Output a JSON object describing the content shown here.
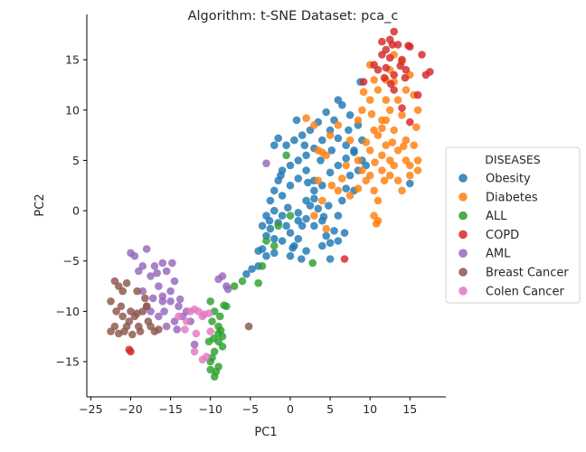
{
  "chart_data": {
    "type": "scatter",
    "title": "Algorithm: t-SNE  Dataset: pca_c",
    "xlabel": "PC1",
    "ylabel": "PC2",
    "xlim": [
      -25.5,
      19.5
    ],
    "ylim": [
      -18.5,
      19.5
    ],
    "xticks": [
      -25,
      -20,
      -15,
      -10,
      -5,
      0,
      5,
      10,
      15
    ],
    "yticks": [
      -15,
      -10,
      -5,
      0,
      5,
      10,
      15
    ],
    "grid": false,
    "legend": {
      "title": "DISEASES",
      "placement": "right"
    },
    "series": [
      {
        "name": "Obesity",
        "color": "#1f77b4",
        "points": [
          [
            -5.5,
            -6.3
          ],
          [
            -4.8,
            -5.8
          ],
          [
            -4,
            -5.5
          ],
          [
            -3.5,
            -3.8
          ],
          [
            -3,
            -2.5
          ],
          [
            -2.5,
            -1.8
          ],
          [
            -2,
            -2.8
          ],
          [
            -1.5,
            -1.2
          ],
          [
            -1,
            -0.5
          ],
          [
            -0.5,
            -1.5
          ],
          [
            0,
            -2.2
          ],
          [
            0.5,
            -3.5
          ],
          [
            1,
            -2.8
          ],
          [
            1.5,
            -1.5
          ],
          [
            2,
            -0.8
          ],
          [
            2.5,
            0.5
          ],
          [
            3,
            1.2
          ],
          [
            3.5,
            0.2
          ],
          [
            4,
            -1
          ],
          [
            4.5,
            -2.5
          ],
          [
            5,
            -3.2
          ],
          [
            5.5,
            -2
          ],
          [
            6,
            -0.5
          ],
          [
            6.5,
            1
          ],
          [
            7,
            2.2
          ],
          [
            7.5,
            3.5
          ],
          [
            8,
            2
          ],
          [
            8.5,
            4
          ],
          [
            9,
            5
          ],
          [
            8,
            5.8
          ],
          [
            7,
            6.5
          ],
          [
            6,
            7.2
          ],
          [
            5,
            8
          ],
          [
            4,
            7
          ],
          [
            3,
            6.2
          ],
          [
            2,
            5.5
          ],
          [
            1,
            5
          ],
          [
            0,
            4.5
          ],
          [
            -1,
            4
          ],
          [
            -1.5,
            3
          ],
          [
            -2,
            2
          ],
          [
            -2.5,
            1
          ],
          [
            -3,
            -0.5
          ],
          [
            -3.5,
            -1.5
          ],
          [
            -2,
            0
          ],
          [
            -1,
            1.5
          ],
          [
            0,
            2.5
          ],
          [
            1,
            3.2
          ],
          [
            2,
            4
          ],
          [
            3,
            3
          ],
          [
            4,
            2.5
          ],
          [
            5,
            3.8
          ],
          [
            6,
            4.5
          ],
          [
            7,
            5.2
          ],
          [
            8,
            6
          ],
          [
            9,
            7
          ],
          [
            8.5,
            8.5
          ],
          [
            7.5,
            9.5
          ],
          [
            6.5,
            10.5
          ],
          [
            5.5,
            9
          ],
          [
            4.5,
            9.8
          ],
          [
            3.5,
            8.8
          ],
          [
            2.5,
            8
          ],
          [
            1.5,
            7.5
          ],
          [
            0.5,
            7
          ],
          [
            -0.5,
            6.5
          ],
          [
            -1.5,
            7.2
          ],
          [
            -2,
            6.5
          ],
          [
            0,
            -4.5
          ],
          [
            -1,
            -3
          ],
          [
            1,
            -1
          ],
          [
            2,
            1
          ],
          [
            3,
            -1.5
          ],
          [
            4,
            -3.5
          ],
          [
            5,
            -4.8
          ],
          [
            6,
            -3
          ],
          [
            2,
            -4
          ],
          [
            -3,
            -4.5
          ],
          [
            -4,
            -4
          ],
          [
            -2,
            -4.2
          ],
          [
            8.8,
            12.8
          ],
          [
            9.5,
            4.5
          ],
          [
            15,
            2.7
          ],
          [
            6,
            11
          ],
          [
            3,
            2
          ],
          [
            1,
            -0.2
          ],
          [
            -0.3,
            0.3
          ],
          [
            4.8,
            0.5
          ],
          [
            7.3,
            8
          ],
          [
            5.2,
            6
          ],
          [
            2.2,
            2.8
          ],
          [
            -1.2,
            3.5
          ],
          [
            0.8,
            9
          ],
          [
            1.8,
            6.5
          ],
          [
            3.8,
            5
          ],
          [
            -2.6,
            -1
          ],
          [
            0.3,
            -3.7
          ],
          [
            6.8,
            -2.2
          ],
          [
            4.2,
            -0.6
          ],
          [
            1.4,
            -4.8
          ]
        ]
      },
      {
        "name": "Diabetes",
        "color": "#ff7f0e",
        "points": [
          [
            2,
            9.2
          ],
          [
            3,
            8.5
          ],
          [
            3.5,
            6
          ],
          [
            4.5,
            5.5
          ],
          [
            3.5,
            3
          ],
          [
            4,
            1
          ],
          [
            3,
            -0.5
          ],
          [
            4.5,
            -1.8
          ],
          [
            6,
            2
          ],
          [
            7,
            4.5
          ],
          [
            7.5,
            7
          ],
          [
            8.5,
            9
          ],
          [
            9,
            10
          ],
          [
            10,
            11
          ],
          [
            10.5,
            13
          ],
          [
            10,
            14.5
          ],
          [
            11,
            12
          ],
          [
            12,
            13
          ],
          [
            12.5,
            14
          ],
          [
            13,
            15.5
          ],
          [
            14,
            14.8
          ],
          [
            15,
            13.5
          ],
          [
            14.5,
            12
          ],
          [
            13.5,
            11
          ],
          [
            12.5,
            10
          ],
          [
            11.5,
            9
          ],
          [
            10.5,
            8
          ],
          [
            9.5,
            6.8
          ],
          [
            8.5,
            5
          ],
          [
            9.5,
            3
          ],
          [
            10.5,
            2
          ],
          [
            11.5,
            4
          ],
          [
            12.5,
            5
          ],
          [
            13.5,
            6
          ],
          [
            14.5,
            7
          ],
          [
            15.5,
            6.5
          ],
          [
            16,
            5
          ],
          [
            15,
            3.5
          ],
          [
            14,
            2
          ],
          [
            13,
            4.5
          ],
          [
            12,
            6.5
          ],
          [
            11,
            7.5
          ],
          [
            10,
            6
          ],
          [
            11,
            1
          ],
          [
            10.5,
            -0.5
          ],
          [
            11,
            -1
          ],
          [
            10.8,
            -1.3
          ],
          [
            12,
            9
          ],
          [
            13,
            8
          ],
          [
            14,
            9.5
          ],
          [
            14.5,
            5
          ],
          [
            15,
            4.5
          ],
          [
            16,
            4
          ],
          [
            13.5,
            3
          ],
          [
            12.5,
            3.5
          ],
          [
            11.5,
            5.5
          ],
          [
            10,
            3.5
          ],
          [
            9,
            4
          ],
          [
            8.5,
            2.2
          ],
          [
            7.5,
            1.5
          ],
          [
            6.5,
            3.2
          ],
          [
            5.2,
            2.5
          ],
          [
            4,
            5.8
          ],
          [
            5,
            7.5
          ],
          [
            6,
            8.5
          ],
          [
            16,
            10
          ],
          [
            15.5,
            11.5
          ],
          [
            13,
            12.8
          ],
          [
            12,
            11
          ],
          [
            11.5,
            8.2
          ],
          [
            10.2,
            9.6
          ],
          [
            9.2,
            11.8
          ],
          [
            14.2,
            6.4
          ],
          [
            12.8,
            6.8
          ],
          [
            11.8,
            3
          ],
          [
            15.8,
            8.3
          ],
          [
            10.6,
            4.8
          ]
        ]
      },
      {
        "name": "ALL",
        "color": "#2ca02c",
        "points": [
          [
            -10,
            -9
          ],
          [
            -9.5,
            -10
          ],
          [
            -9,
            -11.5
          ],
          [
            -8.5,
            -12.5
          ],
          [
            -9,
            -13
          ],
          [
            -9.5,
            -14
          ],
          [
            -10,
            -15
          ],
          [
            -9,
            -15.5
          ],
          [
            -9.5,
            -16.5
          ],
          [
            -10,
            -15.8
          ],
          [
            -8.5,
            -13.5
          ],
          [
            -9,
            -12.2
          ],
          [
            -8.8,
            -10.5
          ],
          [
            -9.8,
            -11
          ],
          [
            -10.2,
            -13
          ],
          [
            -8.3,
            -9.4
          ],
          [
            -9.3,
            -16
          ],
          [
            -9.8,
            -14.6
          ],
          [
            -8,
            -9.5
          ],
          [
            -7,
            -7.5
          ],
          [
            -6,
            -7
          ],
          [
            -4,
            -7.2
          ],
          [
            -3.5,
            -5.5
          ],
          [
            -3,
            -3
          ],
          [
            -1.5,
            -1.5
          ],
          [
            0,
            -0.5
          ],
          [
            -2,
            -3.5
          ],
          [
            2.8,
            -5.2
          ],
          [
            -0.5,
            5.5
          ],
          [
            -9.6,
            -12.7
          ],
          [
            -8.7,
            -11.9
          ]
        ]
      },
      {
        "name": "COPD",
        "color": "#d62728",
        "points": [
          [
            -20,
            -14
          ],
          [
            -20.2,
            -13.8
          ],
          [
            9.2,
            12.8
          ],
          [
            10.5,
            14.5
          ],
          [
            11.5,
            15.5
          ],
          [
            12,
            16
          ],
          [
            12.5,
            17
          ],
          [
            13,
            17.8
          ],
          [
            13.5,
            16.5
          ],
          [
            14,
            15
          ],
          [
            14.5,
            14
          ],
          [
            13,
            13.5
          ],
          [
            12,
            14.2
          ],
          [
            11,
            14
          ],
          [
            12.5,
            15.2
          ],
          [
            13.8,
            14.4
          ],
          [
            11.5,
            16.8
          ],
          [
            12.8,
            16.5
          ],
          [
            14.8,
            16.4
          ],
          [
            15,
            16.3
          ],
          [
            16,
            11.5
          ],
          [
            17,
            13.5
          ],
          [
            17.5,
            13.8
          ],
          [
            16.5,
            15.5
          ],
          [
            13,
            12
          ],
          [
            14,
            10.2
          ],
          [
            15,
            8.8
          ],
          [
            6.8,
            -4.8
          ],
          [
            12.6,
            12.6
          ],
          [
            11.8,
            13.2
          ],
          [
            14.4,
            13.2
          ]
        ]
      },
      {
        "name": "AML",
        "color": "#9467bd",
        "points": [
          [
            -3,
            4.7
          ],
          [
            -20,
            -4.2
          ],
          [
            -19.5,
            -4.5
          ],
          [
            -18,
            -3.8
          ],
          [
            -18.5,
            -5.5
          ],
          [
            -19,
            -6
          ],
          [
            -17.5,
            -6.5
          ],
          [
            -17,
            -5.5
          ],
          [
            -16,
            -5.2
          ],
          [
            -15.5,
            -6
          ],
          [
            -16.5,
            -7.5
          ],
          [
            -15,
            -8
          ],
          [
            -14.5,
            -7
          ],
          [
            -15,
            -9
          ],
          [
            -14,
            -9.5
          ],
          [
            -13.5,
            -10.5
          ],
          [
            -14.5,
            -11
          ],
          [
            -15.5,
            -11.5
          ],
          [
            -16.5,
            -10.5
          ],
          [
            -17.5,
            -10
          ],
          [
            -18,
            -9.5
          ],
          [
            -16,
            -9
          ],
          [
            -14.8,
            -5.2
          ],
          [
            -16,
            -8.5
          ],
          [
            -13,
            -10
          ],
          [
            -12.5,
            -11
          ],
          [
            -12,
            -13.3
          ],
          [
            -9,
            -6.8
          ],
          [
            -8.5,
            -6.5
          ],
          [
            -8,
            -7.5
          ],
          [
            -7.8,
            -7.8
          ],
          [
            -17.2,
            -8.7
          ],
          [
            -15.8,
            -10
          ],
          [
            -13.8,
            -8.8
          ],
          [
            -18.5,
            -8
          ],
          [
            -16.7,
            -6.2
          ],
          [
            -14.2,
            -11.8
          ]
        ]
      },
      {
        "name": "Breast Cancer",
        "color": "#8c564b",
        "points": [
          [
            -22,
            -7
          ],
          [
            -21.5,
            -7.5
          ],
          [
            -21,
            -8
          ],
          [
            -22.5,
            -9
          ],
          [
            -21.8,
            -10
          ],
          [
            -21,
            -10.5
          ],
          [
            -20.5,
            -11.5
          ],
          [
            -22,
            -11.5
          ],
          [
            -22.5,
            -12
          ],
          [
            -21.5,
            -12.2
          ],
          [
            -20.2,
            -11
          ],
          [
            -19.5,
            -10.5
          ],
          [
            -19,
            -11.5
          ],
          [
            -18.5,
            -10
          ],
          [
            -18,
            -9.5
          ],
          [
            -17.5,
            -11.5
          ],
          [
            -17,
            -12
          ],
          [
            -16.5,
            -11.8
          ],
          [
            -19.2,
            -8
          ],
          [
            -20.5,
            -7.2
          ],
          [
            -21.2,
            -9.5
          ],
          [
            -20.8,
            -12
          ],
          [
            -19.8,
            -12.3
          ],
          [
            -18.8,
            -12
          ],
          [
            -17.8,
            -11
          ],
          [
            -18.2,
            -8.7
          ],
          [
            -19.2,
            -10.2
          ],
          [
            -20,
            -10
          ],
          [
            -5.2,
            -11.5
          ]
        ]
      },
      {
        "name": "Colen Cancer",
        "color": "#e377c2",
        "points": [
          [
            -14,
            -10.5
          ],
          [
            -13,
            -11
          ],
          [
            -12.5,
            -10
          ],
          [
            -12,
            -9.8
          ],
          [
            -11.5,
            -10
          ],
          [
            -11,
            -10.5
          ],
          [
            -10.8,
            -10.3
          ],
          [
            -10.2,
            -10.2
          ],
          [
            -10,
            -12
          ],
          [
            -12,
            -14
          ],
          [
            -11,
            -14.8
          ],
          [
            -10.5,
            -14.5
          ],
          [
            -13.2,
            -11.8
          ],
          [
            -11.8,
            -12.2
          ]
        ]
      }
    ]
  }
}
